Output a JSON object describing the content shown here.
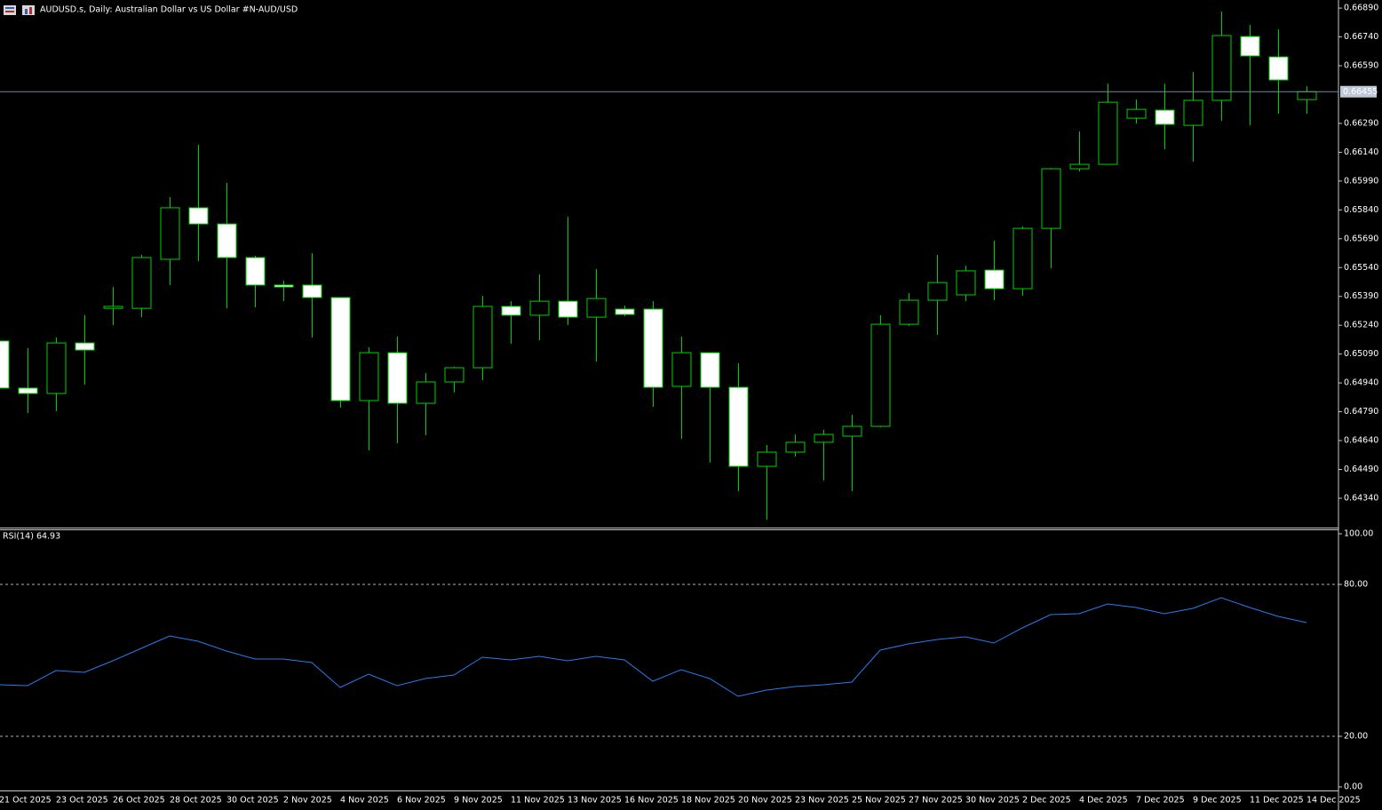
{
  "chart_data": [
    {
      "type": "candlestick",
      "title": "AUDUSD.s, Daily:  Australian Dollar vs US Dollar #N-AUD/USD",
      "categories": [
        "21 Oct 2025",
        null,
        "23 Oct 2025",
        null,
        "26 Oct 2025",
        null,
        "28 Oct 2025",
        null,
        "30 Oct 2025",
        null,
        "2 Nov 2025",
        null,
        "4 Nov 2025",
        null,
        "6 Nov 2025",
        null,
        "9 Nov 2025",
        null,
        "11 Nov 2025",
        null,
        "13 Nov 2025",
        null,
        "16 Nov 2025",
        null,
        "18 Nov 2025",
        null,
        "20 Nov 2025",
        null,
        "23 Nov 2025",
        null,
        "25 Nov 2025",
        null,
        "27 Nov 2025",
        null,
        "30 Nov 2025",
        null,
        "2 Dec 2025",
        null,
        "4 Dec 2025",
        null,
        "7 Dec 2025",
        null,
        "9 Dec 2025",
        null,
        "11 Dec 2025",
        null,
        "14 Dec 2025"
      ],
      "open": [
        0.65158,
        0.64913,
        0.64885,
        0.65148,
        0.65328,
        0.65328,
        0.65583,
        0.65851,
        0.65767,
        0.65592,
        0.65449,
        0.65449,
        0.65384,
        0.64848,
        0.65097,
        0.64834,
        0.64945,
        0.65019,
        0.65338,
        0.65292,
        0.65365,
        0.65282,
        0.65324,
        0.65324,
        0.64922,
        0.65097,
        0.64917,
        0.64506,
        0.6458,
        0.64631,
        0.64663,
        0.64714,
        0.65245,
        0.6537,
        0.65398,
        0.65527,
        0.6543,
        0.65744,
        0.66054,
        0.66077,
        0.66317,
        0.66359,
        0.6628,
        0.6641,
        0.66742,
        0.66636,
        0.66414
      ],
      "high": [
        0.65158,
        0.65121,
        0.65176,
        0.65292,
        0.65439,
        0.65606,
        0.65906,
        0.66179,
        0.6598,
        0.65601,
        0.65472,
        0.65615,
        0.65384,
        0.65125,
        0.65181,
        0.64991,
        0.65024,
        0.65393,
        0.65365,
        0.65504,
        0.65804,
        0.65532,
        0.65342,
        0.65365,
        0.65181,
        0.65097,
        0.65042,
        0.64617,
        0.64672,
        0.64696,
        0.64774,
        0.65292,
        0.65407,
        0.65606,
        0.6555,
        0.6568,
        0.65754,
        0.66058,
        0.66248,
        0.66497,
        0.66414,
        0.66497,
        0.66557,
        0.66872,
        0.66802,
        0.66779,
        0.66483
      ],
      "low": [
        0.64913,
        0.64783,
        0.64793,
        0.64931,
        0.65241,
        0.65282,
        0.65449,
        0.65573,
        0.65328,
        0.65333,
        0.65365,
        0.65176,
        0.64811,
        0.64589,
        0.64626,
        0.64668,
        0.6489,
        0.64954,
        0.65144,
        0.65162,
        0.65241,
        0.65051,
        0.65287,
        0.64816,
        0.64649,
        0.64525,
        0.64377,
        0.64229,
        0.64557,
        0.64432,
        0.64377,
        0.64709,
        0.65236,
        0.6519,
        0.65365,
        0.6537,
        0.65393,
        0.65536,
        0.6604,
        0.66077,
        0.66289,
        0.66155,
        0.66091,
        0.66303,
        0.6628,
        0.6634,
        0.6634
      ],
      "close": [
        0.64913,
        0.64885,
        0.65148,
        0.65111,
        0.65338,
        0.65592,
        0.65851,
        0.65767,
        0.65592,
        0.65449,
        0.65439,
        0.65384,
        0.64848,
        0.65097,
        0.64834,
        0.64945,
        0.65019,
        0.65338,
        0.65292,
        0.65365,
        0.65282,
        0.65379,
        0.65296,
        0.64917,
        0.65097,
        0.64917,
        0.64506,
        0.6458,
        0.64631,
        0.64672,
        0.64714,
        0.65245,
        0.6537,
        0.65462,
        0.65523,
        0.6543,
        0.65744,
        0.66054,
        0.66077,
        0.664,
        0.66363,
        0.66285,
        0.6641,
        0.66747,
        0.66641,
        0.66516,
        0.66455
      ],
      "bull_color": "#000000",
      "bear_color": "#ffffff",
      "outline_color": "#00d000",
      "ylim": [
        0.64192,
        0.66932
      ],
      "yticks": [
        {
          "value": 0.6689,
          "label": "0.66890"
        },
        {
          "value": 0.6674,
          "label": "0.66740"
        },
        {
          "value": 0.6659,
          "label": "0.66590"
        },
        {
          "value": 0.6629,
          "label": "0.66290"
        },
        {
          "value": 0.6614,
          "label": "0.66140"
        },
        {
          "value": 0.6599,
          "label": "0.65990"
        },
        {
          "value": 0.6584,
          "label": "0.65840"
        },
        {
          "value": 0.6569,
          "label": "0.65690"
        },
        {
          "value": 0.6554,
          "label": "0.65540"
        },
        {
          "value": 0.6539,
          "label": "0.65390"
        },
        {
          "value": 0.6524,
          "label": "0.65240"
        },
        {
          "value": 0.6509,
          "label": "0.65090"
        },
        {
          "value": 0.6494,
          "label": "0.64940"
        },
        {
          "value": 0.6479,
          "label": "0.64790"
        },
        {
          "value": 0.6464,
          "label": "0.64640"
        },
        {
          "value": 0.6449,
          "label": "0.64490"
        },
        {
          "value": 0.6434,
          "label": "0.64340"
        }
      ],
      "price_line": {
        "value": 0.66455,
        "label": "0.66455",
        "color": "#7888a8"
      }
    },
    {
      "type": "line",
      "title": "RSI(14) 64.93",
      "values": [
        40.35,
        40.0,
        45.96,
        45.26,
        49.82,
        54.74,
        59.65,
        57.54,
        53.68,
        50.53,
        50.53,
        49.12,
        39.3,
        44.56,
        40.0,
        42.81,
        44.21,
        51.23,
        50.18,
        51.58,
        49.82,
        51.58,
        50.18,
        41.75,
        46.32,
        42.81,
        35.79,
        38.25,
        39.65,
        40.35,
        41.4,
        54.04,
        56.49,
        58.25,
        59.3,
        56.84,
        62.81,
        68.07,
        68.42,
        72.28,
        70.88,
        68.42,
        70.53,
        74.74,
        70.88,
        67.37,
        64.93
      ],
      "color": "#2a7bf0",
      "ylim": [
        0,
        100
      ],
      "yticks": [
        {
          "value": 100,
          "label": "100.00"
        },
        {
          "value": 80,
          "label": "80.00"
        },
        {
          "value": 20,
          "label": "20.00"
        },
        {
          "value": 0,
          "label": "0.00"
        }
      ],
      "levels": [
        80,
        20
      ]
    }
  ]
}
